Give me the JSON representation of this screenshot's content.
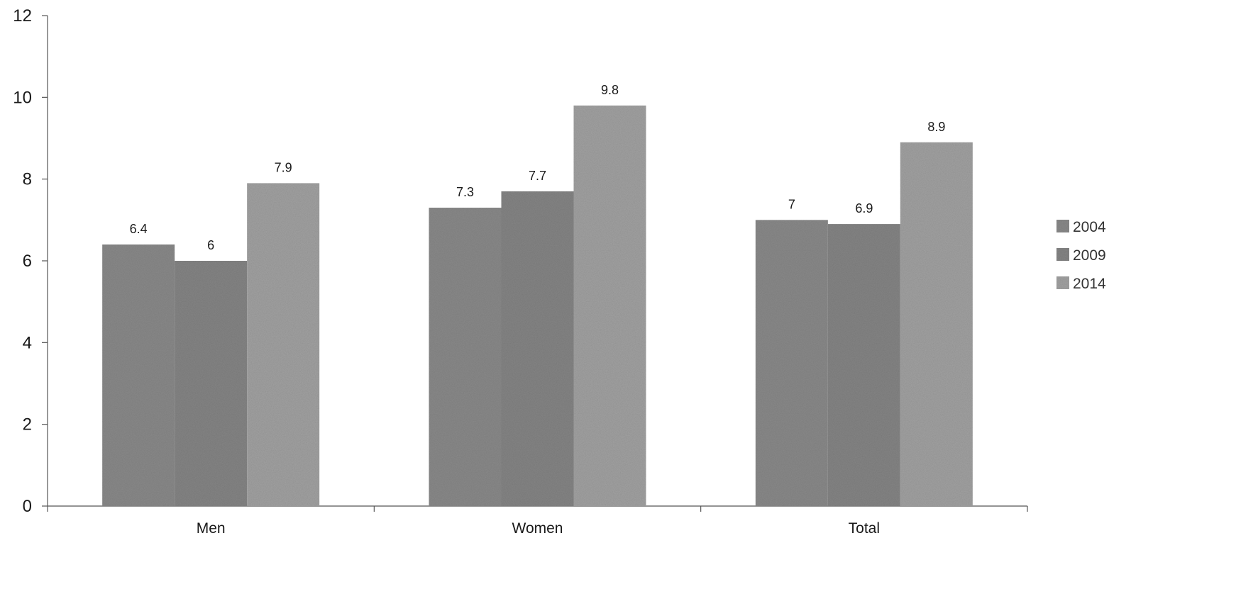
{
  "chart_data": {
    "type": "bar",
    "categories": [
      "Men",
      "Women",
      "Total"
    ],
    "series": [
      {
        "name": "2004",
        "values": [
          6.4,
          7.3,
          7
        ],
        "color": "#8a8a8a"
      },
      {
        "name": "2009",
        "values": [
          6,
          7.7,
          6.9
        ],
        "color": "#858585"
      },
      {
        "name": "2014",
        "values": [
          7.9,
          9.8,
          8.9
        ],
        "color": "#a2a2a2"
      }
    ],
    "data_labels": [
      [
        "6.4",
        "7.3",
        "7"
      ],
      [
        "6",
        "7.7",
        "6.9"
      ],
      [
        "7.9",
        "9.8",
        "8.9"
      ]
    ],
    "title": "",
    "xlabel": "",
    "ylabel": "",
    "ylim": [
      0,
      12
    ],
    "yticks": [
      0,
      2,
      4,
      6,
      8,
      10,
      12
    ],
    "grid": false,
    "legend_position": "right"
  }
}
